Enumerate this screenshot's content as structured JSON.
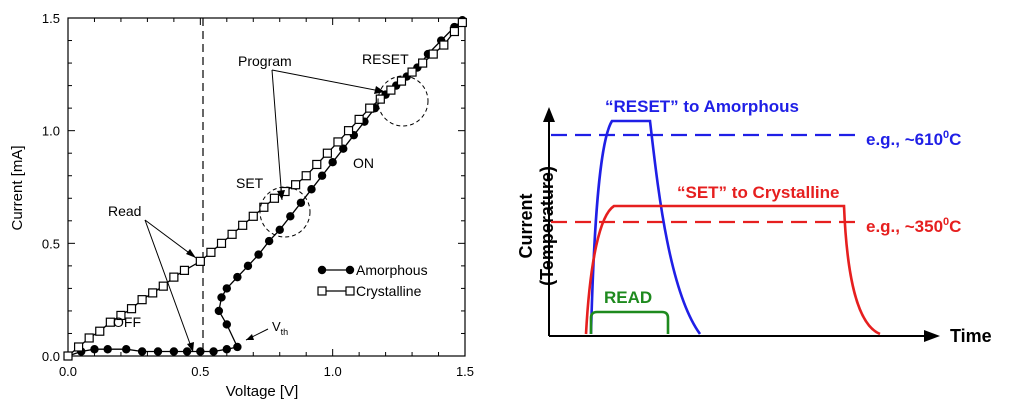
{
  "chart_data": [
    {
      "type": "line",
      "xlabel": "Voltage [V]",
      "ylabel": "Current [mA]",
      "xlim": [
        0,
        1.5
      ],
      "ylim": [
        0,
        1.5
      ],
      "x_ticks": [
        "0.0",
        "0.5",
        "1.0",
        "1.5"
      ],
      "y_ticks": [
        "0.0",
        "0.5",
        "1.0",
        "1.5"
      ],
      "grid": false,
      "legend_position": "center-right",
      "series": [
        {
          "name": "Amorphous",
          "marker": "filled-circle",
          "points": [
            [
              0.0,
              0.0
            ],
            [
              0.05,
              0.02
            ],
            [
              0.1,
              0.03
            ],
            [
              0.15,
              0.03
            ],
            [
              0.22,
              0.03
            ],
            [
              0.28,
              0.02
            ],
            [
              0.34,
              0.02
            ],
            [
              0.4,
              0.02
            ],
            [
              0.45,
              0.02
            ],
            [
              0.5,
              0.02
            ],
            [
              0.55,
              0.02
            ],
            [
              0.6,
              0.03
            ],
            [
              0.64,
              0.04
            ],
            [
              0.6,
              0.14
            ],
            [
              0.57,
              0.2
            ],
            [
              0.58,
              0.26
            ],
            [
              0.6,
              0.3
            ],
            [
              0.64,
              0.35
            ],
            [
              0.68,
              0.4
            ],
            [
              0.72,
              0.45
            ],
            [
              0.76,
              0.51
            ],
            [
              0.8,
              0.56
            ],
            [
              0.84,
              0.62
            ],
            [
              0.88,
              0.68
            ],
            [
              0.92,
              0.74
            ],
            [
              0.96,
              0.8
            ],
            [
              1.0,
              0.86
            ],
            [
              1.04,
              0.92
            ],
            [
              1.08,
              0.98
            ],
            [
              1.12,
              1.04
            ],
            [
              1.16,
              1.1
            ],
            [
              1.2,
              1.16
            ],
            [
              1.24,
              1.2
            ],
            [
              1.28,
              1.24
            ],
            [
              1.32,
              1.28
            ],
            [
              1.36,
              1.34
            ],
            [
              1.41,
              1.4
            ],
            [
              1.46,
              1.46
            ],
            [
              1.49,
              1.49
            ]
          ]
        },
        {
          "name": "Crystalline",
          "marker": "open-square",
          "points": [
            [
              0.0,
              0.0
            ],
            [
              0.04,
              0.04
            ],
            [
              0.08,
              0.08
            ],
            [
              0.12,
              0.11
            ],
            [
              0.16,
              0.15
            ],
            [
              0.2,
              0.18
            ],
            [
              0.24,
              0.21
            ],
            [
              0.28,
              0.25
            ],
            [
              0.32,
              0.28
            ],
            [
              0.36,
              0.31
            ],
            [
              0.4,
              0.35
            ],
            [
              0.44,
              0.38
            ],
            [
              0.5,
              0.42
            ],
            [
              0.54,
              0.46
            ],
            [
              0.58,
              0.5
            ],
            [
              0.62,
              0.54
            ],
            [
              0.66,
              0.58
            ],
            [
              0.7,
              0.62
            ],
            [
              0.74,
              0.66
            ],
            [
              0.78,
              0.7
            ],
            [
              0.82,
              0.73
            ],
            [
              0.86,
              0.76
            ],
            [
              0.9,
              0.8
            ],
            [
              0.94,
              0.85
            ],
            [
              0.98,
              0.9
            ],
            [
              1.02,
              0.95
            ],
            [
              1.06,
              1.0
            ],
            [
              1.1,
              1.05
            ],
            [
              1.14,
              1.1
            ],
            [
              1.18,
              1.14
            ],
            [
              1.22,
              1.18
            ],
            [
              1.26,
              1.22
            ],
            [
              1.3,
              1.26
            ],
            [
              1.34,
              1.3
            ],
            [
              1.38,
              1.34
            ],
            [
              1.42,
              1.38
            ],
            [
              1.46,
              1.44
            ],
            [
              1.49,
              1.48
            ]
          ]
        }
      ],
      "annotations": [
        "Program",
        "RESET",
        "SET",
        "ON",
        "Read",
        "OFF",
        "V",
        "th"
      ]
    },
    {
      "type": "line",
      "xlabel": "Time",
      "ylabel": "Current",
      "ylabel_sub": "(Temperature)",
      "series": [
        {
          "name": "“RESET” to Amorphous",
          "color": "#1f1fe6"
        },
        {
          "name": "“SET” to Crystalline",
          "color": "#e61f1f"
        },
        {
          "name": "READ",
          "color": "#1e8a1e"
        }
      ],
      "thresholds": [
        {
          "label_prefix": "e.g., ~610",
          "label_sup": "0",
          "label_unit": "C",
          "color": "#1f1fe6"
        },
        {
          "label_prefix": "e.g., ~350",
          "label_sup": "0",
          "label_unit": "C",
          "color": "#e61f1f"
        }
      ]
    }
  ]
}
